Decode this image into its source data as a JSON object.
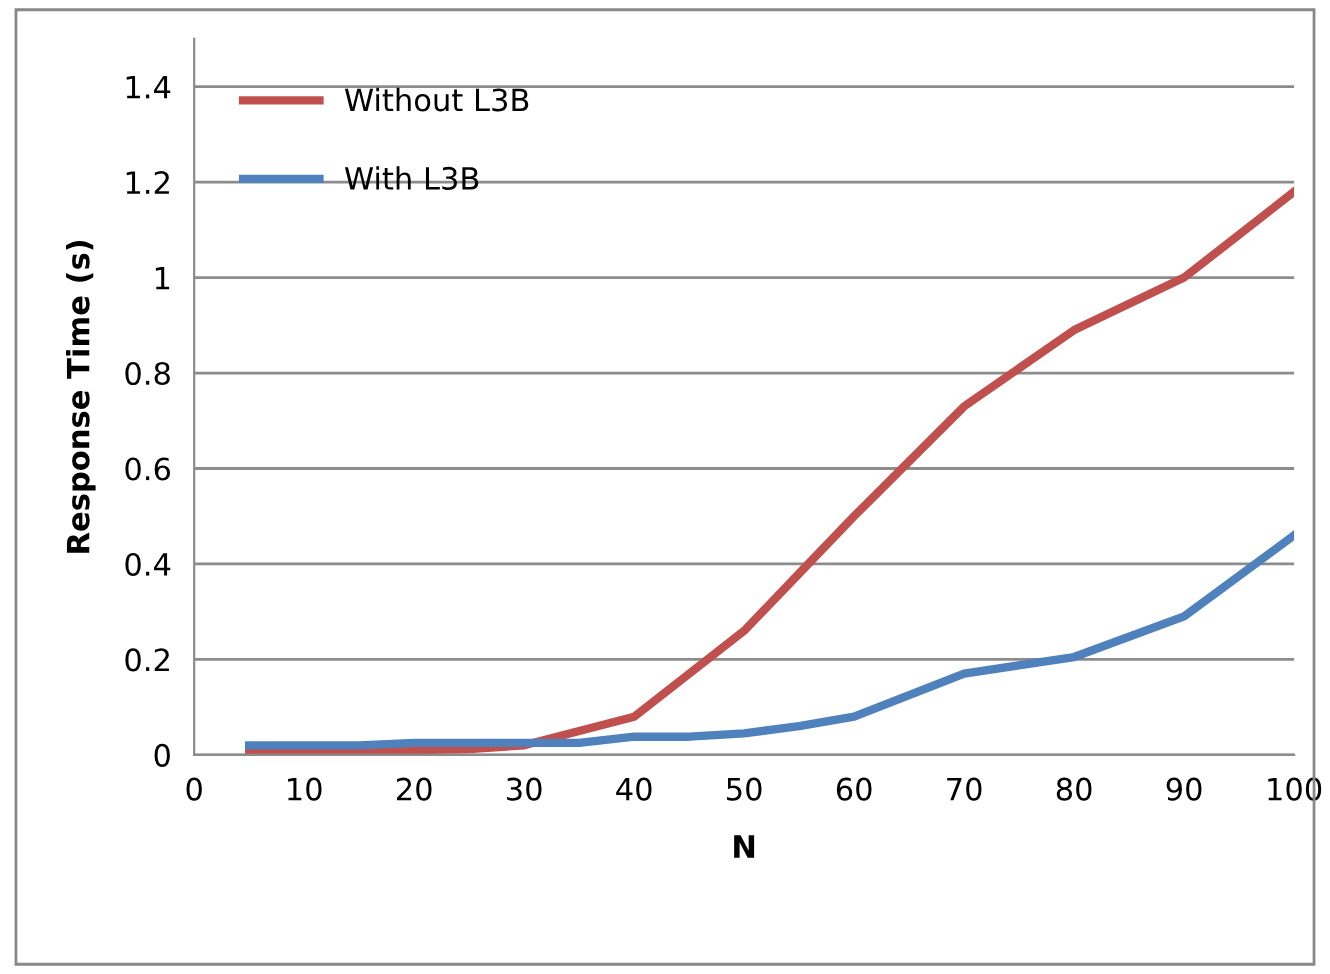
{
  "chart_data": {
    "type": "line",
    "xlabel": "N",
    "ylabel": "Response Time (s)",
    "xlim": [
      0,
      100
    ],
    "xticks": [
      0,
      10,
      20,
      30,
      40,
      50,
      60,
      70,
      80,
      90,
      100
    ],
    "ylim": [
      0,
      1.5
    ],
    "yticks": [
      0,
      0.2,
      0.4,
      0.6,
      0.8,
      1,
      1.2,
      1.4
    ],
    "grid": "y",
    "legend": "top left",
    "marker": "none",
    "line_style": "solid",
    "series": [
      {
        "name": "Without L3B",
        "color": "#c0504d",
        "x": [
          5,
          10,
          15,
          20,
          25,
          30,
          35,
          40,
          45,
          50,
          55,
          60,
          70,
          80,
          90,
          100
        ],
        "values": [
          0.005,
          0.005,
          0.008,
          0.01,
          0.012,
          0.02,
          0.05,
          0.08,
          0.17,
          0.26,
          0.38,
          0.5,
          0.73,
          0.89,
          1.0,
          1.18
        ]
      },
      {
        "name": "With L3B",
        "color": "#4f81bd",
        "x": [
          5,
          10,
          15,
          20,
          25,
          30,
          35,
          40,
          45,
          50,
          55,
          60,
          70,
          80,
          90,
          100
        ],
        "values": [
          0.02,
          0.02,
          0.02,
          0.025,
          0.025,
          0.025,
          0.025,
          0.038,
          0.038,
          0.045,
          0.06,
          0.08,
          0.17,
          0.205,
          0.29,
          0.46
        ]
      }
    ]
  }
}
